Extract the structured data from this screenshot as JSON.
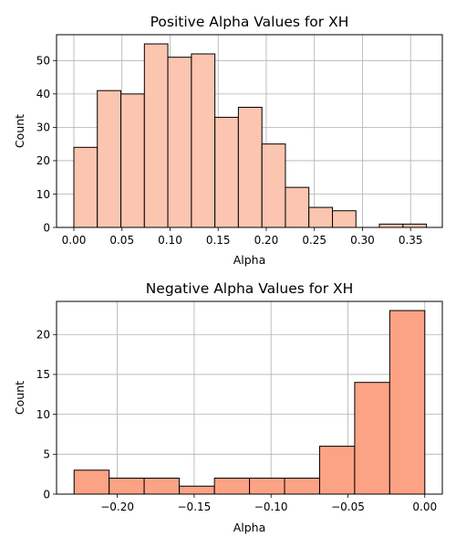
{
  "chart_data": [
    {
      "type": "bar",
      "title": "Positive Alpha Values for XH",
      "xlabel": "Alpha",
      "ylabel": "Count",
      "grid": true,
      "color": "#fcc5b0",
      "edge_color": "#000000",
      "xlim": [
        -0.018,
        0.383
      ],
      "ylim": [
        0,
        57.75
      ],
      "xticks": [
        0.0,
        0.05,
        0.1,
        0.15,
        0.2,
        0.25,
        0.3,
        0.35
      ],
      "xtick_labels": [
        "0.00",
        "0.05",
        "0.10",
        "0.15",
        "0.20",
        "0.25",
        "0.30",
        "0.35"
      ],
      "yticks": [
        0,
        10,
        20,
        30,
        40,
        50
      ],
      "ytick_labels": [
        "0",
        "10",
        "20",
        "30",
        "40",
        "50"
      ],
      "bins": [
        {
          "x0": 0.0,
          "x1": 0.0244,
          "count": 24
        },
        {
          "x0": 0.0244,
          "x1": 0.0489,
          "count": 41
        },
        {
          "x0": 0.0489,
          "x1": 0.0733,
          "count": 40
        },
        {
          "x0": 0.0733,
          "x1": 0.0977,
          "count": 55
        },
        {
          "x0": 0.0977,
          "x1": 0.1222,
          "count": 51
        },
        {
          "x0": 0.1222,
          "x1": 0.1466,
          "count": 52
        },
        {
          "x0": 0.1466,
          "x1": 0.171,
          "count": 33
        },
        {
          "x0": 0.171,
          "x1": 0.1955,
          "count": 36
        },
        {
          "x0": 0.1955,
          "x1": 0.2199,
          "count": 25
        },
        {
          "x0": 0.2199,
          "x1": 0.2443,
          "count": 12
        },
        {
          "x0": 0.2443,
          "x1": 0.2688,
          "count": 6
        },
        {
          "x0": 0.2688,
          "x1": 0.2932,
          "count": 5
        },
        {
          "x0": 0.2932,
          "x1": 0.3176,
          "count": 0
        },
        {
          "x0": 0.3176,
          "x1": 0.3421,
          "count": 1
        },
        {
          "x0": 0.3421,
          "x1": 0.3665,
          "count": 1
        }
      ]
    },
    {
      "type": "bar",
      "title": "Negative Alpha Values for XH",
      "xlabel": "Alpha",
      "ylabel": "Count",
      "grid": true,
      "color": "#fca385",
      "edge_color": "#000000",
      "xlim": [
        -0.2395,
        0.0114
      ],
      "ylim": [
        0,
        24.15
      ],
      "xticks": [
        -0.2,
        -0.15,
        -0.1,
        -0.05,
        0.0
      ],
      "xtick_labels": [
        "−0.20",
        "−0.15",
        "−0.10",
        "−0.05",
        "0.00"
      ],
      "yticks": [
        0,
        5,
        10,
        15,
        20
      ],
      "ytick_labels": [
        "0",
        "5",
        "10",
        "15",
        "20"
      ],
      "bins": [
        {
          "x0": -0.2281,
          "x1": -0.2053,
          "count": 3
        },
        {
          "x0": -0.2053,
          "x1": -0.1825,
          "count": 2
        },
        {
          "x0": -0.1825,
          "x1": -0.1597,
          "count": 2
        },
        {
          "x0": -0.1597,
          "x1": -0.1368,
          "count": 1
        },
        {
          "x0": -0.1368,
          "x1": -0.114,
          "count": 2
        },
        {
          "x0": -0.114,
          "x1": -0.0912,
          "count": 2
        },
        {
          "x0": -0.0912,
          "x1": -0.0684,
          "count": 2
        },
        {
          "x0": -0.0684,
          "x1": -0.0456,
          "count": 6
        },
        {
          "x0": -0.0456,
          "x1": -0.0228,
          "count": 14
        },
        {
          "x0": -0.0228,
          "x1": 0.0,
          "count": 23
        }
      ]
    }
  ]
}
